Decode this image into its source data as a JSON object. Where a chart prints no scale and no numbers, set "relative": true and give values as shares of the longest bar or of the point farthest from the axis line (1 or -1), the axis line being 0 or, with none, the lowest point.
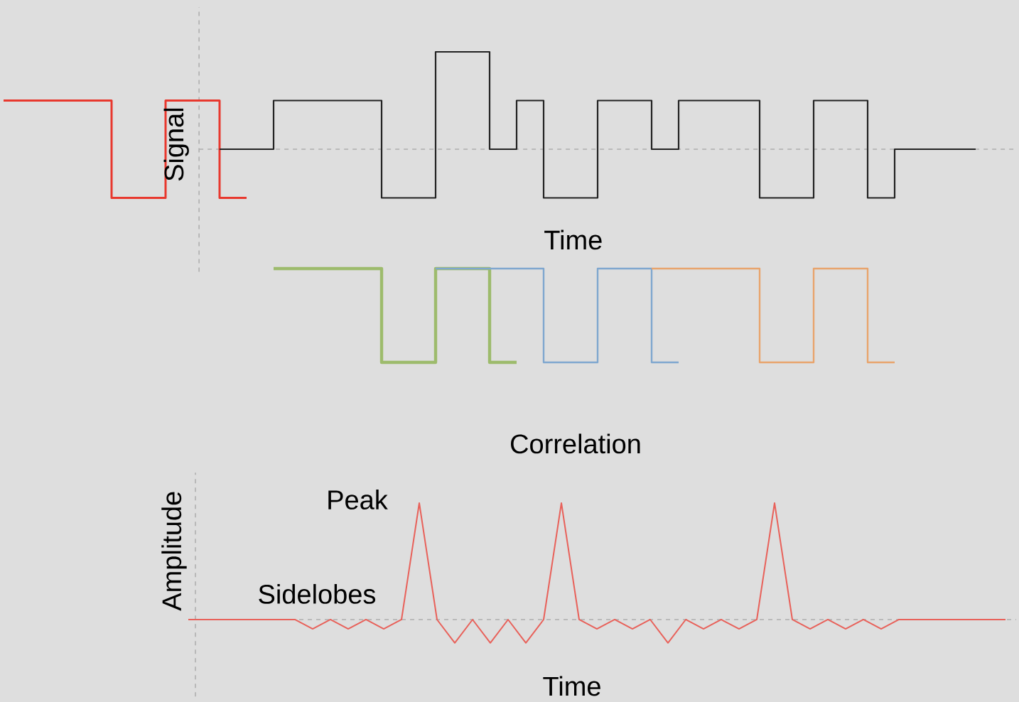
{
  "chart_data": [
    {
      "type": "step",
      "xlabel": "Time",
      "ylabel": "Signal",
      "relative": true,
      "ref_lines": [
        {
          "axis": "y",
          "value": 0,
          "color": "#afafaf",
          "line_style": "dashed"
        }
      ],
      "categories": [
        null,
        null,
        null,
        null,
        null,
        null,
        null,
        null,
        null,
        null,
        null,
        null,
        null,
        null,
        null,
        null,
        null,
        null,
        null,
        null,
        null,
        null,
        null,
        null,
        null,
        null,
        null,
        null,
        null,
        null,
        null,
        null,
        null,
        null,
        null,
        null,
        null
      ],
      "series": [
        {
          "color": "#e8382e",
          "values": [
            0.5,
            0.5,
            0.5,
            0.5,
            -0.5,
            -0.5,
            0.5,
            0.5,
            -0.5,
            -0.5,
            null,
            null,
            null,
            null,
            null,
            null,
            null,
            null,
            null,
            null,
            null,
            null,
            null,
            null,
            null,
            null,
            null,
            null,
            null,
            null,
            null,
            null,
            null,
            null,
            null,
            null,
            null
          ]
        },
        {
          "color": "#222222",
          "values": [
            null,
            null,
            null,
            null,
            null,
            null,
            null,
            null,
            0,
            0,
            0.5,
            0.5,
            0.5,
            0.5,
            -0.5,
            -0.5,
            1,
            1,
            0,
            0.5,
            -0.5,
            -0.5,
            0.5,
            0.5,
            0,
            0.5,
            0.5,
            0.5,
            -0.5,
            -0.5,
            0.5,
            0.5,
            -0.5,
            0,
            0,
            0,
            0
          ]
        }
      ]
    },
    {
      "type": "step",
      "relative": true,
      "categories": [
        null,
        null,
        null,
        null,
        null,
        null,
        null,
        null,
        null,
        null,
        null,
        null,
        null,
        null,
        null,
        null,
        null,
        null,
        null,
        null,
        null,
        null,
        null,
        null,
        null,
        null,
        null,
        null,
        null,
        null,
        null,
        null,
        null,
        null,
        null,
        null,
        null
      ],
      "series": [
        {
          "color": "#9dbb6c",
          "values": [
            null,
            null,
            null,
            null,
            null,
            null,
            null,
            null,
            null,
            null,
            1,
            1,
            1,
            1,
            0,
            0,
            1,
            1,
            0,
            0,
            null,
            null,
            null,
            null,
            null,
            null,
            null,
            null,
            null,
            null,
            null,
            null,
            null,
            null,
            null,
            null,
            null
          ]
        },
        {
          "color": "#7fa7cf",
          "values": [
            null,
            null,
            null,
            null,
            null,
            null,
            null,
            null,
            null,
            null,
            null,
            null,
            null,
            null,
            null,
            null,
            1,
            1,
            1,
            1,
            0,
            0,
            1,
            1,
            0,
            0,
            null,
            null,
            null,
            null,
            null,
            null,
            null,
            null,
            null,
            null,
            null
          ]
        },
        {
          "color": "#e8a46c",
          "values": [
            null,
            null,
            null,
            null,
            null,
            null,
            null,
            null,
            null,
            null,
            null,
            null,
            null,
            null,
            null,
            null,
            null,
            null,
            null,
            null,
            null,
            null,
            null,
            null,
            1,
            1,
            1,
            1,
            0,
            0,
            1,
            1,
            0,
            0,
            null,
            null,
            null
          ]
        }
      ]
    },
    {
      "type": "line",
      "title": "Correlation",
      "xlabel": "Time",
      "ylabel": "Amplitude",
      "relative": true,
      "color": "#e8615a",
      "annotations": [
        "Peak",
        "Sidelobes"
      ],
      "ref_lines": [
        {
          "axis": "y",
          "value": 0,
          "color": "#afafaf",
          "line_style": "dashed"
        }
      ],
      "categories": [
        null,
        null,
        null,
        null,
        null,
        null,
        null,
        null,
        null,
        null,
        null,
        null,
        null,
        null,
        null,
        null,
        null,
        null,
        null,
        null,
        null,
        null,
        null,
        null,
        null,
        null,
        null,
        null,
        null,
        null,
        null,
        null,
        null,
        null,
        null,
        null,
        null,
        null,
        null,
        null,
        null,
        null,
        null,
        null,
        null,
        null,
        null
      ],
      "values": [
        0,
        0,
        0,
        0,
        0,
        0,
        0,
        -0.08,
        0,
        -0.08,
        0,
        -0.08,
        0,
        1,
        0,
        -0.2,
        0,
        -0.2,
        0,
        -0.2,
        0,
        1,
        0,
        -0.08,
        0,
        -0.08,
        0,
        -0.2,
        0,
        -0.08,
        0,
        -0.08,
        0,
        1,
        0,
        -0.08,
        0,
        -0.08,
        0,
        -0.08,
        0,
        0,
        0,
        0,
        0,
        0,
        0
      ]
    }
  ]
}
